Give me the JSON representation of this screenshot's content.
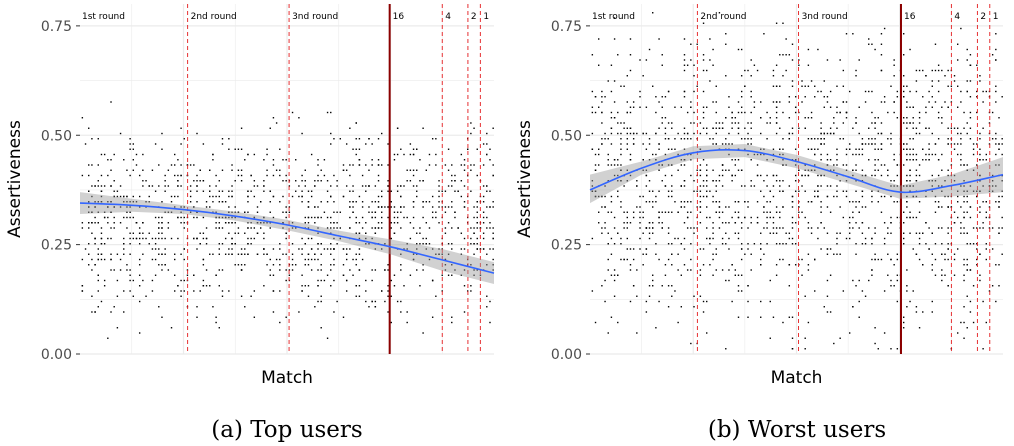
{
  "chart_data": [
    {
      "type": "scatter",
      "caption": "(a) Top users",
      "xlabel": "Match",
      "ylabel": "Assertiveness",
      "xlim": [
        0,
        100
      ],
      "ylim": [
        0,
        0.8
      ],
      "yticks": [
        "0.00",
        "0.25",
        "0.50",
        "0.75"
      ],
      "ytick_values": [
        0,
        0.25,
        0.5,
        0.75
      ],
      "grid": true,
      "round_markers": [
        {
          "label": "1st round",
          "x": 0,
          "line": "none"
        },
        {
          "label": "2nd round",
          "x": 26,
          "line": "dashed"
        },
        {
          "label": "3nd round",
          "x": 50.5,
          "line": "dashed"
        },
        {
          "label": "16",
          "x": 74.8,
          "line": "solid"
        },
        {
          "label": "4",
          "x": 87.5,
          "line": "dashed"
        },
        {
          "label": "2",
          "x": 93.7,
          "line": "dashed"
        },
        {
          "label": "1",
          "x": 96.7,
          "line": "dashed"
        }
      ],
      "trend": {
        "x": [
          0,
          12.5,
          25,
          37.5,
          50,
          62.5,
          75,
          87.5,
          100
        ],
        "y": [
          0.345,
          0.34,
          0.33,
          0.315,
          0.295,
          0.27,
          0.245,
          0.215,
          0.185
        ],
        "ci_low": [
          0.32,
          0.325,
          0.32,
          0.305,
          0.283,
          0.258,
          0.228,
          0.19,
          0.16
        ],
        "ci_high": [
          0.37,
          0.355,
          0.34,
          0.325,
          0.307,
          0.282,
          0.262,
          0.24,
          0.21
        ]
      },
      "points": {
        "count": 1400,
        "seed": 11,
        "y_center": 0.3,
        "y_spread": 0.14,
        "ymin": 0.01,
        "ymax": 0.76
      }
    },
    {
      "type": "scatter",
      "caption": "(b) Worst users",
      "xlabel": "Match",
      "ylabel": "Assertiveness",
      "xlim": [
        0,
        100
      ],
      "ylim": [
        0,
        0.8
      ],
      "yticks": [
        "0.00",
        "0.25",
        "0.50",
        "0.75"
      ],
      "ytick_values": [
        0,
        0.25,
        0.5,
        0.75
      ],
      "grid": true,
      "round_markers": [
        {
          "label": "1st round",
          "x": 0,
          "line": "none"
        },
        {
          "label": "2nd round",
          "x": 26,
          "line": "dashed"
        },
        {
          "label": "3nd round",
          "x": 50.5,
          "line": "dashed"
        },
        {
          "label": "16",
          "x": 75.3,
          "line": "solid"
        },
        {
          "label": "4",
          "x": 87.5,
          "line": "dashed"
        },
        {
          "label": "2",
          "x": 93.8,
          "line": "dashed"
        },
        {
          "label": "1",
          "x": 96.8,
          "line": "dashed"
        }
      ],
      "trend": {
        "x": [
          0,
          12.5,
          25,
          37.5,
          50,
          62.5,
          75,
          87.5,
          100
        ],
        "y": [
          0.375,
          0.425,
          0.46,
          0.465,
          0.44,
          0.405,
          0.37,
          0.385,
          0.41
        ],
        "ci_low": [
          0.345,
          0.41,
          0.445,
          0.45,
          0.425,
          0.39,
          0.355,
          0.36,
          0.37
        ],
        "ci_high": [
          0.41,
          0.44,
          0.475,
          0.48,
          0.455,
          0.42,
          0.385,
          0.41,
          0.45
        ]
      },
      "points": {
        "count": 1900,
        "seed": 29,
        "y_center": 0.4,
        "y_spread": 0.22,
        "ymin": 0.01,
        "ymax": 0.82
      }
    }
  ]
}
